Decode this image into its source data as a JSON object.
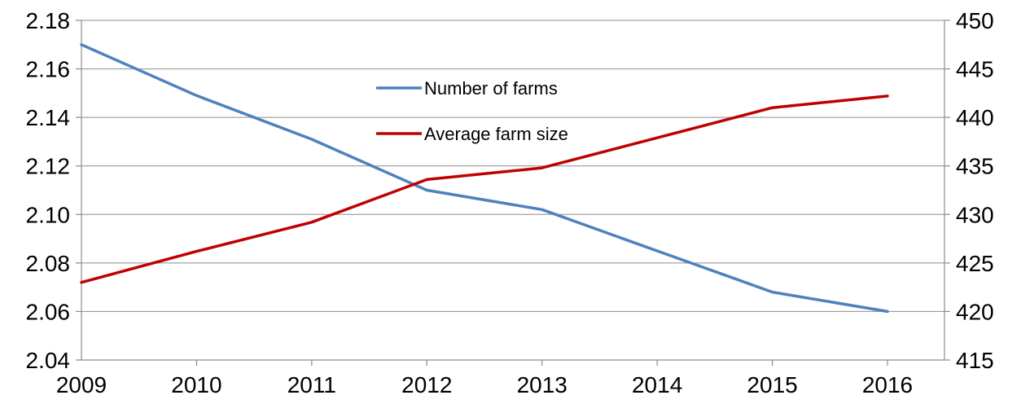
{
  "chart_data": {
    "type": "line",
    "title": "",
    "xlabel": "",
    "ylabel": "",
    "y2label": "",
    "categories": [
      "2009",
      "2010",
      "2011",
      "2012",
      "2013",
      "2014",
      "2015",
      "2016"
    ],
    "y_axis_left": {
      "min": 2.04,
      "max": 2.18,
      "step": 0.02,
      "tick_labels": [
        "2.04",
        "2.06",
        "2.08",
        "2.10",
        "2.12",
        "2.14",
        "2.16",
        "2.18"
      ]
    },
    "y_axis_right": {
      "min": 415,
      "max": 450,
      "step": 5,
      "tick_labels": [
        "415",
        "420",
        "425",
        "430",
        "435",
        "440",
        "445",
        "450"
      ]
    },
    "grid": true,
    "legend_position": "top-center",
    "series": [
      {
        "name": "Number of farms",
        "axis": "left",
        "color": "#4f81bd",
        "values": [
          2.17,
          2.149,
          2.131,
          2.11,
          2.102,
          2.085,
          2.068,
          2.06
        ]
      },
      {
        "name": "Average farm size",
        "axis": "right",
        "color": "#c00000",
        "values": [
          423,
          426.2,
          429.2,
          433.6,
          434.8,
          437.9,
          441,
          442.2
        ]
      }
    ]
  }
}
